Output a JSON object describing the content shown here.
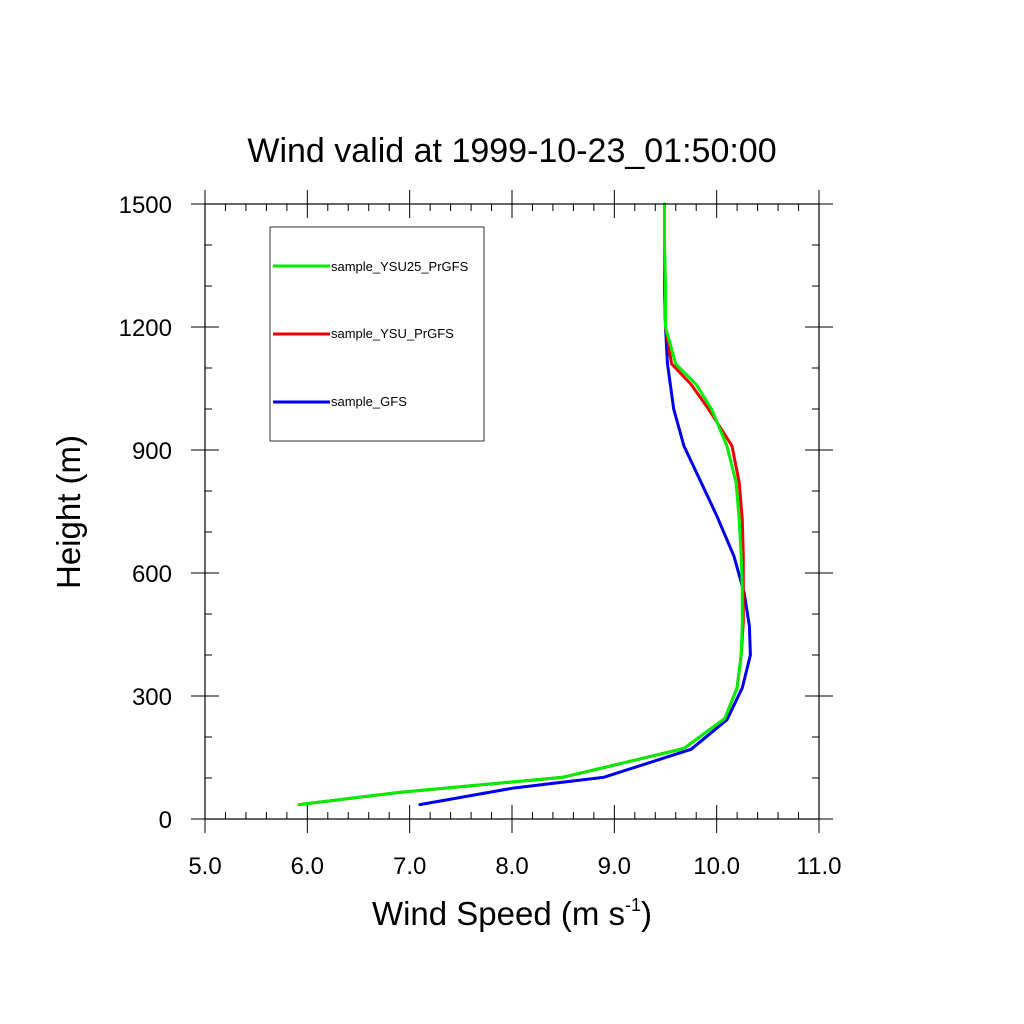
{
  "chart_data": {
    "type": "line",
    "title": "Wind valid at 1999-10-23_01:50:00",
    "xlabel": "Wind Speed (m s",
    "xlabel_superscript": "-1",
    "xlabel_suffix": ")",
    "ylabel": "Height (m)",
    "xlim": [
      5.0,
      11.0
    ],
    "ylim": [
      0,
      1500
    ],
    "x_ticks": [
      "5.0",
      "6.0",
      "7.0",
      "8.0",
      "9.0",
      "10.0",
      "11.0"
    ],
    "y_ticks": [
      "0",
      "300",
      "600",
      "900",
      "1200",
      "1500"
    ],
    "grid": false,
    "legend_position": "top-left",
    "series": [
      {
        "name": "sample_YSU25_PrGFS",
        "color": "#00ee00",
        "points": [
          [
            5.92,
            35
          ],
          [
            6.9,
            65
          ],
          [
            8.5,
            102
          ],
          [
            9.68,
            172
          ],
          [
            10.08,
            245
          ],
          [
            10.2,
            320
          ],
          [
            10.24,
            400
          ],
          [
            10.25,
            480
          ],
          [
            10.25,
            560
          ],
          [
            10.24,
            640
          ],
          [
            10.22,
            730
          ],
          [
            10.19,
            820
          ],
          [
            10.1,
            910
          ],
          [
            9.95,
            1000
          ],
          [
            9.8,
            1060
          ],
          [
            9.6,
            1110
          ],
          [
            9.5,
            1200
          ],
          [
            9.5,
            1300
          ],
          [
            9.49,
            1400
          ],
          [
            9.49,
            1500
          ]
        ]
      },
      {
        "name": "sample_YSU_PrGFS",
        "color": "#ee0000",
        "points": [
          [
            5.92,
            35
          ],
          [
            6.9,
            65
          ],
          [
            8.5,
            102
          ],
          [
            9.68,
            172
          ],
          [
            10.08,
            245
          ],
          [
            10.2,
            320
          ],
          [
            10.24,
            400
          ],
          [
            10.26,
            480
          ],
          [
            10.26,
            560
          ],
          [
            10.26,
            640
          ],
          [
            10.25,
            730
          ],
          [
            10.22,
            820
          ],
          [
            10.15,
            910
          ],
          [
            9.92,
            1000
          ],
          [
            9.75,
            1060
          ],
          [
            9.56,
            1110
          ],
          [
            9.5,
            1200
          ],
          [
            9.49,
            1300
          ],
          [
            9.49,
            1400
          ],
          [
            9.49,
            1500
          ]
        ]
      },
      {
        "name": "sample_GFS",
        "color": "#0000ee",
        "points": [
          [
            7.1,
            35
          ],
          [
            8.0,
            75
          ],
          [
            8.9,
            102
          ],
          [
            9.75,
            170
          ],
          [
            10.1,
            242
          ],
          [
            10.25,
            320
          ],
          [
            10.33,
            400
          ],
          [
            10.32,
            470
          ],
          [
            10.27,
            550
          ],
          [
            10.17,
            640
          ],
          [
            10.0,
            740
          ],
          [
            9.85,
            820
          ],
          [
            9.68,
            910
          ],
          [
            9.58,
            1000
          ],
          [
            9.52,
            1110
          ],
          [
            9.5,
            1200
          ],
          [
            9.49,
            1300
          ],
          [
            9.49,
            1400
          ],
          [
            9.49,
            1500
          ]
        ]
      }
    ]
  }
}
